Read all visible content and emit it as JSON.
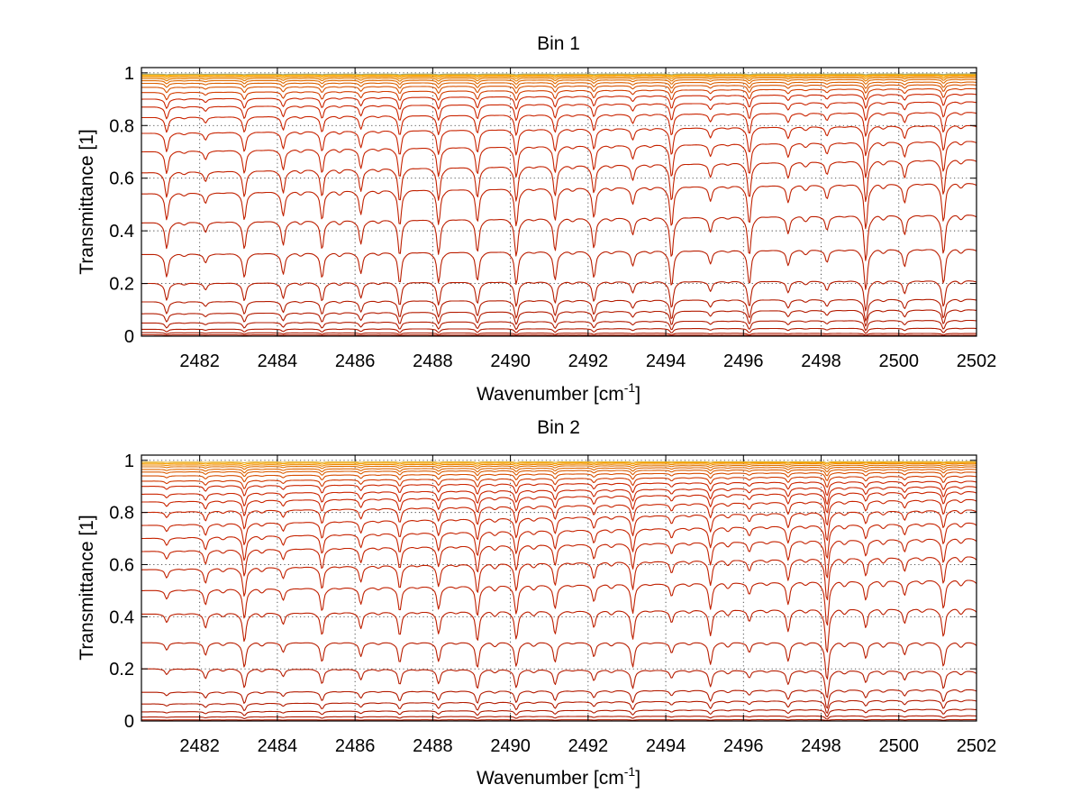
{
  "chart_data": [
    {
      "type": "line",
      "title": "Bin 1",
      "xlabel": "Wavenumber [cm",
      "xlabel_sup": "-1",
      "xlabel_end": "]",
      "ylabel": "Transmittance [1]",
      "xlim": [
        2480.5,
        2502
      ],
      "ylim": [
        0,
        1.02
      ],
      "xticks": [
        "2482",
        "2484",
        "2486",
        "2488",
        "2490",
        "2492",
        "2494",
        "2496",
        "2498",
        "2500",
        "2502"
      ],
      "yticks": [
        "0",
        "0.2",
        "0.4",
        "0.6",
        "0.8",
        "1"
      ],
      "grid": true,
      "line_pitch_cm-1": 1.0,
      "first_line_center": 2481.15,
      "levels_base": [
        0.005,
        0.013,
        0.026,
        0.05,
        0.085,
        0.13,
        0.2,
        0.31,
        0.43,
        0.54,
        0.62,
        0.7,
        0.77,
        0.83,
        0.87,
        0.9,
        0.925,
        0.945,
        0.96,
        0.97,
        0.978,
        0.984,
        0.989,
        0.992,
        0.995
      ],
      "levels_right": [
        0.003,
        0.01,
        0.03,
        0.06,
        0.1,
        0.14,
        0.21,
        0.33,
        0.46,
        0.58,
        0.67,
        0.74,
        0.8,
        0.85,
        0.89,
        0.92,
        0.94,
        0.955,
        0.965,
        0.975,
        0.982,
        0.987,
        0.991,
        0.994,
        0.996
      ],
      "colors": [
        "#b01a00",
        "#cc2500",
        "#e07000",
        "#ffb000",
        "#4da6d9"
      ]
    },
    {
      "type": "line",
      "title": "Bin 2",
      "xlabel": "Wavenumber [cm",
      "xlabel_sup": "-1",
      "xlabel_end": "]",
      "ylabel": "Transmittance [1]",
      "xlim": [
        2480.5,
        2502
      ],
      "ylim": [
        0,
        1.02
      ],
      "xticks": [
        "2482",
        "2484",
        "2486",
        "2488",
        "2490",
        "2492",
        "2494",
        "2496",
        "2498",
        "2500",
        "2502"
      ],
      "yticks": [
        "0",
        "0.2",
        "0.4",
        "0.6",
        "0.8",
        "1"
      ],
      "grid": true,
      "line_pitch_cm-1": 1.0,
      "first_line_center": 2481.15,
      "levels_base": [
        0.004,
        0.015,
        0.035,
        0.065,
        0.11,
        0.2,
        0.3,
        0.41,
        0.5,
        0.58,
        0.65,
        0.7,
        0.75,
        0.8,
        0.84,
        0.87,
        0.9,
        0.92,
        0.94,
        0.955,
        0.965,
        0.975,
        0.982,
        0.988,
        0.993
      ],
      "levels_right": [
        0.005,
        0.02,
        0.045,
        0.08,
        0.12,
        0.19,
        0.3,
        0.43,
        0.54,
        0.63,
        0.7,
        0.76,
        0.81,
        0.85,
        0.88,
        0.9,
        0.92,
        0.94,
        0.955,
        0.966,
        0.975,
        0.982,
        0.988,
        0.992,
        0.995
      ],
      "colors": [
        "#b01a00",
        "#cc2500",
        "#e07000",
        "#ffb000",
        "#4da6d9"
      ]
    }
  ]
}
